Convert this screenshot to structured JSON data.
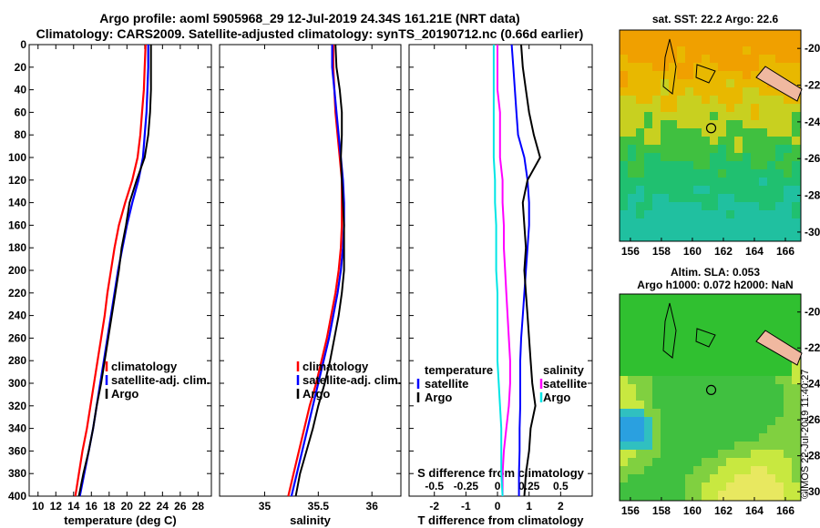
{
  "header": {
    "line1": "Argo profile: aoml 5905968_29 12-Jul-2019 24.34S 161.21E (NRT data)",
    "line2": "Climatology: CARS2009. Satellite-adjusted climatology: synTS_20190712.nc (0.66d earlier)"
  },
  "colors": {
    "climatology": "#ff0000",
    "satellite": "#0000ff",
    "argo": "#000000",
    "temp_diff": "#ff00ff",
    "sal_diff": "#00e5e5"
  },
  "chart_data": [
    {
      "type": "line",
      "xlabel": "temperature (deg C)",
      "ylabel": "depth",
      "xlim": [
        9,
        29.5
      ],
      "ylim": [
        400,
        0
      ],
      "x_ticks": [
        "10",
        "12",
        "14",
        "16",
        "18",
        "20",
        "22",
        "24",
        "26",
        "28"
      ],
      "y_ticks": [
        "0",
        "20",
        "40",
        "60",
        "80",
        "100",
        "120",
        "140",
        "160",
        "180",
        "200",
        "220",
        "240",
        "260",
        "280",
        "300",
        "320",
        "340",
        "360",
        "380",
        "400"
      ],
      "legend": [
        "climatology",
        "satellite-adj. clim.",
        "Argo"
      ],
      "series": [
        {
          "name": "climatology",
          "depth": [
            0,
            20,
            40,
            60,
            80,
            100,
            120,
            140,
            160,
            180,
            200,
            220,
            240,
            260,
            280,
            300,
            320,
            340,
            360,
            380,
            400
          ],
          "values": [
            22.1,
            22.0,
            21.9,
            21.7,
            21.5,
            21.2,
            20.6,
            19.8,
            19.1,
            18.6,
            18.2,
            17.8,
            17.5,
            17.1,
            16.7,
            16.3,
            15.9,
            15.5,
            15.0,
            14.6,
            14.2
          ]
        },
        {
          "name": "satellite-adj. clim.",
          "depth": [
            0,
            20,
            40,
            60,
            80,
            100,
            120,
            140,
            160,
            180,
            200,
            220,
            240,
            260,
            280,
            300,
            320,
            340,
            360,
            380,
            400
          ],
          "values": [
            22.4,
            22.4,
            22.3,
            22.2,
            22.0,
            21.8,
            21.3,
            20.6,
            20.0,
            19.5,
            19.0,
            18.6,
            18.2,
            17.8,
            17.4,
            17.0,
            16.6,
            16.2,
            15.7,
            15.2,
            14.7
          ]
        },
        {
          "name": "Argo",
          "depth": [
            0,
            20,
            40,
            60,
            80,
            100,
            120,
            140,
            160,
            180,
            200,
            220,
            240,
            260,
            280,
            300,
            320,
            340,
            360,
            380,
            400
          ],
          "values": [
            22.7,
            22.7,
            22.7,
            22.6,
            22.4,
            22.0,
            21.1,
            20.3,
            19.9,
            19.4,
            19.1,
            18.7,
            18.3,
            17.9,
            17.5,
            17.1,
            16.6,
            16.2,
            15.7,
            15.1,
            14.6
          ]
        }
      ]
    },
    {
      "type": "line",
      "xlabel": "salinity",
      "ylabel": "depth",
      "xlim": [
        34.58,
        36.27
      ],
      "ylim": [
        400,
        0
      ],
      "x_ticks": [
        "35",
        "35.5",
        "36"
      ],
      "legend": [
        "climatology",
        "satellite-adj. clim.",
        "Argo"
      ],
      "series": [
        {
          "name": "climatology",
          "depth": [
            0,
            20,
            40,
            60,
            80,
            100,
            120,
            140,
            160,
            180,
            200,
            220,
            240,
            260,
            280,
            300,
            320,
            340,
            360,
            380,
            400
          ],
          "values": [
            35.64,
            35.64,
            35.65,
            35.66,
            35.68,
            35.7,
            35.72,
            35.72,
            35.72,
            35.71,
            35.69,
            35.66,
            35.62,
            35.58,
            35.53,
            35.48,
            35.42,
            35.37,
            35.32,
            35.27,
            35.22
          ]
        },
        {
          "name": "satellite-adj. clim.",
          "depth": [
            0,
            20,
            40,
            60,
            80,
            100,
            120,
            140,
            160,
            180,
            200,
            220,
            240,
            260,
            280,
            300,
            320,
            340,
            360,
            380,
            400
          ],
          "values": [
            35.63,
            35.63,
            35.65,
            35.67,
            35.69,
            35.71,
            35.73,
            35.74,
            35.74,
            35.73,
            35.71,
            35.68,
            35.64,
            35.6,
            35.55,
            35.5,
            35.45,
            35.4,
            35.35,
            35.3,
            35.25
          ]
        },
        {
          "name": "Argo",
          "depth": [
            0,
            20,
            40,
            60,
            80,
            100,
            120,
            140,
            160,
            180,
            200,
            220,
            240,
            260,
            280,
            300,
            320,
            340,
            360,
            380,
            400
          ],
          "values": [
            35.66,
            35.67,
            35.7,
            35.72,
            35.72,
            35.71,
            35.72,
            35.73,
            35.74,
            35.74,
            35.74,
            35.72,
            35.69,
            35.65,
            35.61,
            35.56,
            35.5,
            35.45,
            35.39,
            35.33,
            35.29
          ]
        }
      ]
    },
    {
      "type": "line",
      "xlabel": "T difference from climatology",
      "top_xlabel": "S difference from climatology",
      "ylabel": "depth",
      "xlim": [
        -2.8,
        3.0
      ],
      "ylim": [
        400,
        0
      ],
      "x_ticks": [
        "-2",
        "-1",
        "0",
        "1",
        "2"
      ],
      "top_ticks": [
        "-0.5",
        "-0.25",
        "0",
        "0.25",
        "0.5"
      ],
      "legend_left": [
        "temperature",
        "satellite",
        "Argo"
      ],
      "legend_right": [
        "salinity",
        "satellite",
        "Argo"
      ],
      "series": [
        {
          "name": "temperature satellite",
          "depth": [
            0,
            20,
            40,
            60,
            80,
            100,
            120,
            140,
            160,
            180,
            200,
            220,
            240,
            260,
            280,
            300,
            320,
            340,
            360,
            380,
            400
          ],
          "values": [
            0.45,
            0.5,
            0.55,
            0.6,
            0.65,
            0.85,
            0.95,
            1.0,
            1.0,
            0.95,
            0.9,
            0.85,
            0.8,
            0.75,
            0.72,
            0.72,
            0.72,
            0.7,
            0.7,
            0.68,
            0.68
          ]
        },
        {
          "name": "temperature Argo",
          "depth": [
            0,
            20,
            40,
            60,
            80,
            100,
            120,
            140,
            160,
            180,
            200,
            220,
            240,
            260,
            280,
            300,
            320,
            340,
            360,
            380,
            400
          ],
          "values": [
            0.75,
            0.8,
            0.9,
            1.0,
            1.15,
            1.35,
            0.95,
            0.8,
            0.85,
            0.9,
            0.85,
            0.9,
            0.95,
            1.0,
            1.05,
            1.1,
            1.2,
            1.05,
            1.0,
            0.9,
            0.85
          ]
        },
        {
          "name": "salinity satellite",
          "depth": [
            0,
            20,
            40,
            60,
            80,
            100,
            120,
            140,
            160,
            180,
            200,
            220,
            240,
            260,
            280,
            300,
            320,
            340,
            360,
            380,
            400
          ],
          "values": [
            0.0,
            0.0,
            0.0,
            0.02,
            0.02,
            0.02,
            0.04,
            0.04,
            0.05,
            0.05,
            0.06,
            0.07,
            0.08,
            0.09,
            0.1,
            0.1,
            0.09,
            0.07,
            0.05,
            0.04,
            0.04
          ]
        },
        {
          "name": "salinity Argo",
          "depth": [
            0,
            20,
            40,
            60,
            80,
            100,
            120,
            140,
            160,
            180,
            200,
            220,
            240,
            260,
            280,
            300,
            320,
            340,
            360,
            380,
            400
          ],
          "values": [
            -0.03,
            -0.03,
            -0.03,
            -0.03,
            -0.03,
            -0.03,
            -0.02,
            -0.02,
            -0.01,
            -0.01,
            -0.01,
            0.0,
            0.0,
            0.0,
            0.0,
            0.01,
            0.02,
            0.03,
            0.03,
            0.03,
            0.04
          ]
        }
      ]
    }
  ],
  "maps": [
    {
      "title_line1": "sat. SST: 22.2  Argo: 22.6",
      "title_line2": "",
      "x_ticks": [
        "156",
        "158",
        "160",
        "162",
        "164",
        "166"
      ],
      "y_ticks": [
        "-20",
        "-22",
        "-24",
        "-26",
        "-28",
        "-30"
      ]
    },
    {
      "title_line1": "Altim. SLA: 0.053",
      "title_line2": "Argo h1000: 0.072 h2000: NaN",
      "x_ticks": [
        "156",
        "158",
        "160",
        "162",
        "164",
        "166"
      ],
      "y_ticks": [
        "-20",
        "-22",
        "-24",
        "-26",
        "-28",
        "-30"
      ]
    }
  ],
  "footer": {
    "stamp": "©IMOS 22-Jul-2019 11:40:27"
  }
}
